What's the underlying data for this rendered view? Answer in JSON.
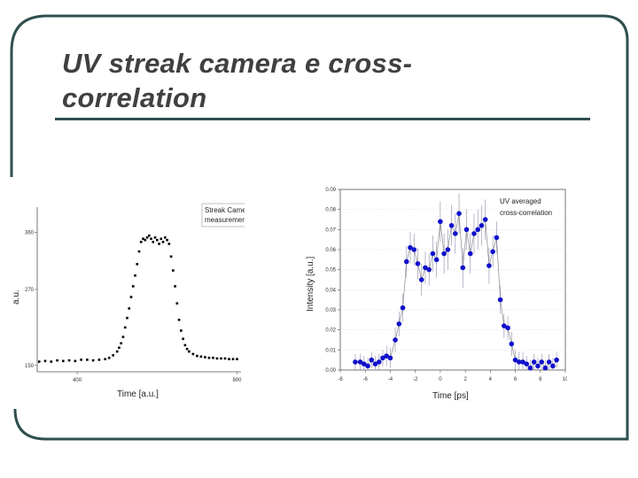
{
  "slide": {
    "title_line1": "UV streak camera e cross-",
    "title_line2": "correlation",
    "colors": {
      "frame": "#2f4f4f",
      "title": "#404040",
      "accent_line": "#2f4f4f"
    }
  },
  "chart_data": [
    {
      "type": "scatter",
      "title": "",
      "legend": [
        "Streak Camera",
        "measurement"
      ],
      "xlabel": "Time [a.u.]",
      "ylabel": "a.u.",
      "xlim": [
        300,
        810
      ],
      "ylim": [
        140,
        400
      ],
      "xticks": [
        400,
        800
      ],
      "yticks": [
        150,
        270,
        360
      ],
      "color": "#000000",
      "x": [
        305,
        320,
        335,
        350,
        365,
        380,
        395,
        410,
        425,
        440,
        455,
        470,
        480,
        490,
        500,
        505,
        510,
        515,
        520,
        525,
        530,
        535,
        540,
        545,
        550,
        555,
        560,
        565,
        570,
        575,
        580,
        585,
        590,
        595,
        600,
        605,
        610,
        615,
        620,
        625,
        630,
        635,
        640,
        645,
        650,
        655,
        660,
        665,
        670,
        675,
        680,
        690,
        700,
        710,
        720,
        730,
        740,
        750,
        760,
        770,
        780,
        790,
        800
      ],
      "y": [
        156,
        157,
        156,
        158,
        157,
        158,
        157,
        159,
        159,
        158,
        159,
        160,
        162,
        166,
        172,
        178,
        185,
        195,
        210,
        225,
        240,
        258,
        275,
        292,
        310,
        330,
        345,
        350,
        348,
        352,
        355,
        350,
        345,
        352,
        348,
        342,
        350,
        345,
        352,
        348,
        342,
        322,
        300,
        275,
        248,
        222,
        205,
        192,
        182,
        176,
        172,
        168,
        165,
        164,
        163,
        162,
        162,
        161,
        161,
        161,
        160,
        160,
        160
      ]
    },
    {
      "type": "scatter",
      "title": "",
      "legend": [
        "UV averaged",
        "cross-correlation"
      ],
      "xlabel": "Time [ps]",
      "ylabel": "Intensity [a.u.]",
      "xlim": [
        -8,
        10
      ],
      "ylim": [
        0.0,
        0.09
      ],
      "xticks": [
        -8,
        -6,
        -4,
        -2,
        0,
        2,
        4,
        6,
        8,
        10
      ],
      "yticks": [
        0.0,
        0.01,
        0.02,
        0.03,
        0.04,
        0.05,
        0.06,
        0.07,
        0.08,
        0.09
      ],
      "ytick_labels": [
        "0.00",
        "0.01",
        "0.02",
        "0.03",
        "0.04",
        "0.05",
        "0.06",
        "0.07",
        "0.08",
        "0.09"
      ],
      "color": "#1010cc",
      "x": [
        -6.8,
        -6.4,
        -6.1,
        -5.8,
        -5.5,
        -5.2,
        -4.9,
        -4.6,
        -4.3,
        -4.0,
        -3.6,
        -3.3,
        -3.0,
        -2.7,
        -2.4,
        -2.1,
        -1.8,
        -1.5,
        -1.2,
        -0.9,
        -0.6,
        -0.3,
        0.0,
        0.3,
        0.6,
        0.9,
        1.2,
        1.5,
        1.8,
        2.1,
        2.4,
        2.7,
        3.0,
        3.3,
        3.6,
        3.9,
        4.2,
        4.5,
        4.8,
        5.1,
        5.4,
        5.7,
        6.0,
        6.3,
        6.6,
        6.9,
        7.2,
        7.5,
        7.8,
        8.1,
        8.4,
        8.7,
        9.0,
        9.3
      ],
      "y": [
        0.004,
        0.004,
        0.003,
        0.002,
        0.005,
        0.003,
        0.004,
        0.006,
        0.007,
        0.006,
        0.015,
        0.023,
        0.031,
        0.054,
        0.061,
        0.06,
        0.053,
        0.045,
        0.051,
        0.05,
        0.058,
        0.055,
        0.074,
        0.058,
        0.06,
        0.072,
        0.068,
        0.078,
        0.051,
        0.07,
        0.058,
        0.068,
        0.07,
        0.072,
        0.075,
        0.052,
        0.059,
        0.066,
        0.035,
        0.022,
        0.021,
        0.013,
        0.005,
        0.004,
        0.004,
        0.003,
        0.001,
        0.004,
        0.002,
        0.004,
        0.001,
        0.004,
        0.002,
        0.005
      ],
      "err": [
        0.004,
        0.004,
        0.004,
        0.004,
        0.004,
        0.004,
        0.004,
        0.004,
        0.005,
        0.005,
        0.006,
        0.006,
        0.007,
        0.008,
        0.008,
        0.008,
        0.008,
        0.008,
        0.008,
        0.008,
        0.009,
        0.009,
        0.01,
        0.01,
        0.01,
        0.01,
        0.01,
        0.01,
        0.01,
        0.01,
        0.01,
        0.01,
        0.01,
        0.01,
        0.01,
        0.009,
        0.008,
        0.008,
        0.007,
        0.006,
        0.006,
        0.006,
        0.005,
        0.005,
        0.005,
        0.004,
        0.004,
        0.004,
        0.004,
        0.004,
        0.004,
        0.004,
        0.004,
        0.004
      ]
    }
  ]
}
